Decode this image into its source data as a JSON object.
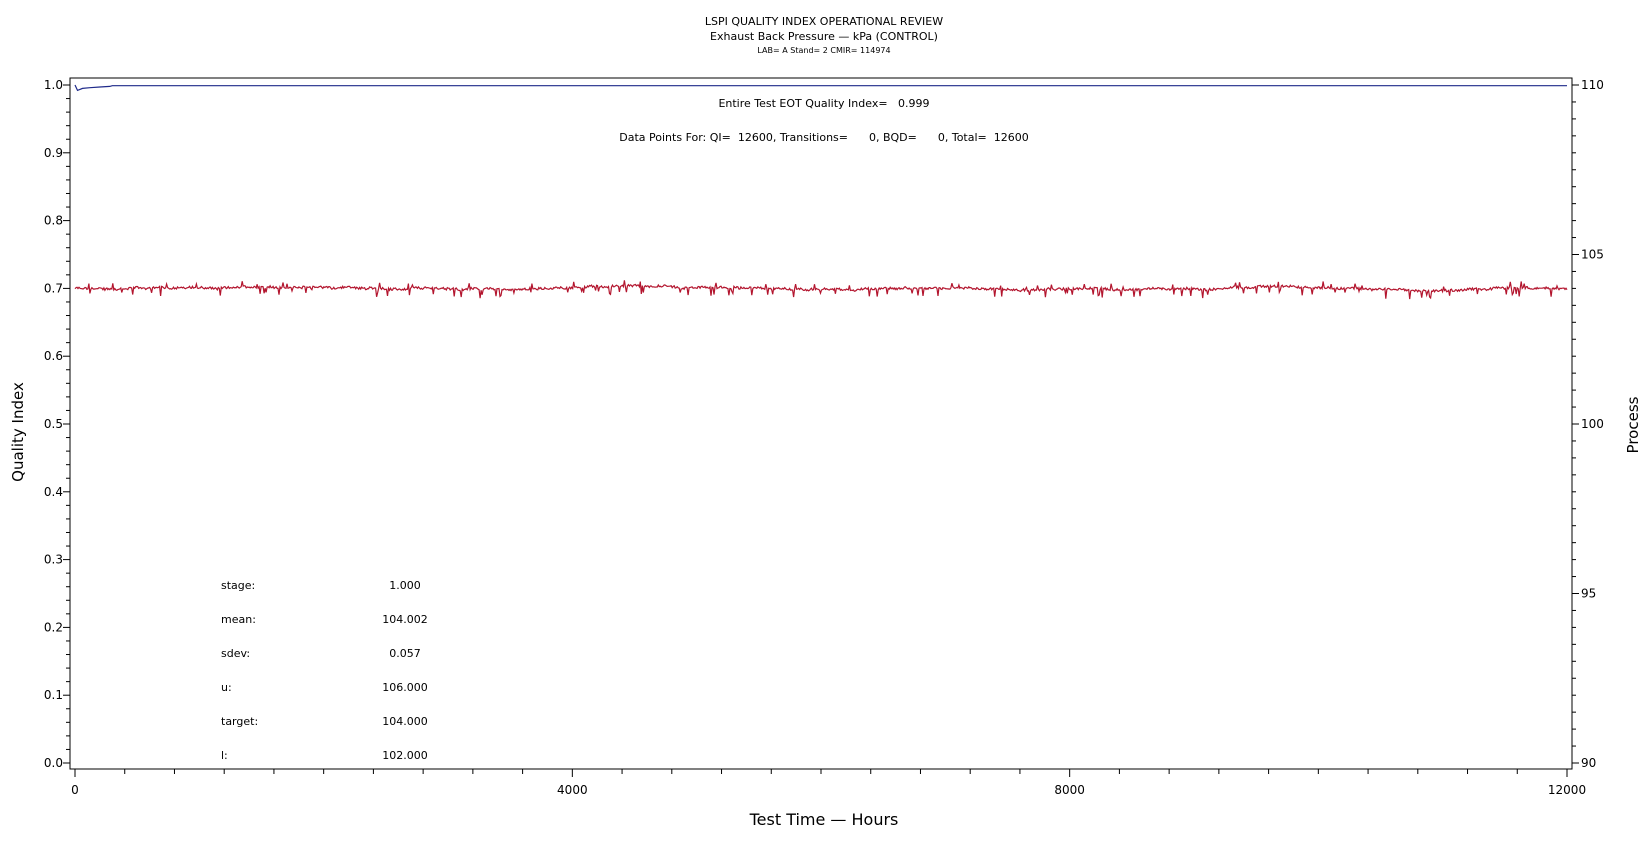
{
  "chart_data": {
    "type": "line",
    "title": "LSPI QUALITY INDEX OPERATIONAL REVIEW",
    "subtitle": "Exhaust Back Pressure — kPa (CONTROL)",
    "subtitle2": "LAB= A Stand= 2 CMIR= 114974",
    "xlabel": "Test Time — Hours",
    "ylabel_left": "Quality Index",
    "ylabel_right": "Process",
    "xlim": [
      0,
      12000
    ],
    "ylim_left": [
      0,
      1
    ],
    "ylim_right": [
      90,
      110
    ],
    "x_ticks": [
      "0",
      "4000",
      "8000",
      "12000"
    ],
    "y_left_ticks": [
      "0.0",
      "0.1",
      "0.2",
      "0.3",
      "0.4",
      "0.5",
      "0.6",
      "0.7",
      "0.8",
      "0.9",
      "1.0"
    ],
    "y_right_ticks": [
      "90",
      "95",
      "100",
      "105",
      "110"
    ],
    "grid": false,
    "annotations": {
      "qi_line": "Entire Test EOT Quality Index=   0.999",
      "data_points": "Data Points For: QI=  12600, Transitions=      0, BQD=      0, Total=  12600"
    },
    "stats": [
      {
        "label": "stage:",
        "value": "1.000"
      },
      {
        "label": "mean:",
        "value": "104.002"
      },
      {
        "label": "sdev:",
        "value": "0.057"
      },
      {
        "label": "u:",
        "value": "106.000"
      },
      {
        "label": "target:",
        "value": "104.000"
      },
      {
        "label": "l:",
        "value": "102.000"
      }
    ],
    "series": [
      {
        "axis": "left",
        "color": "#1f2a8a",
        "x": [
          0,
          20,
          60,
          120,
          200,
          280,
          300,
          12000
        ],
        "y": [
          1.0,
          0.992,
          0.995,
          0.996,
          0.997,
          0.998,
          0.999,
          0.999
        ]
      },
      {
        "axis": "right",
        "color": "#b3152e",
        "mean": 104.002,
        "sdev": 0.057,
        "count": 12600,
        "x_range": [
          0,
          12000
        ]
      }
    ]
  }
}
